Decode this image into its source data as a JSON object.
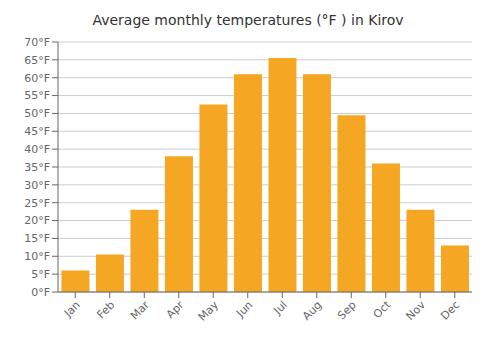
{
  "chart_data": {
    "type": "bar",
    "title": "Average monthly temperatures (°F ) in Kirov",
    "categories": [
      "Jan",
      "Feb",
      "Mar",
      "Apr",
      "May",
      "Jun",
      "Jul",
      "Aug",
      "Sep",
      "Oct",
      "Nov",
      "Dec"
    ],
    "values": [
      6,
      10.5,
      23,
      38,
      52.5,
      61,
      65.5,
      61,
      49.5,
      36,
      23,
      13
    ],
    "color": "#F5A623",
    "ylim": [
      0,
      70
    ],
    "yticks": [
      {
        "value": 0,
        "label": "0°F"
      },
      {
        "value": 5,
        "label": "5°F"
      },
      {
        "value": 10,
        "label": "10°F"
      },
      {
        "value": 15,
        "label": "15°F"
      },
      {
        "value": 20,
        "label": "20°F"
      },
      {
        "value": 25,
        "label": "25°F"
      },
      {
        "value": 30,
        "label": "30°F"
      },
      {
        "value": 35,
        "label": "35°F"
      },
      {
        "value": 40,
        "label": "40°F"
      },
      {
        "value": 45,
        "label": "45°F"
      },
      {
        "value": 50,
        "label": "50°F"
      },
      {
        "value": 55,
        "label": "55°F"
      },
      {
        "value": 60,
        "label": "60°F"
      },
      {
        "value": 65,
        "label": "65°F"
      },
      {
        "value": 70,
        "label": "70°F"
      }
    ],
    "grid": true
  }
}
